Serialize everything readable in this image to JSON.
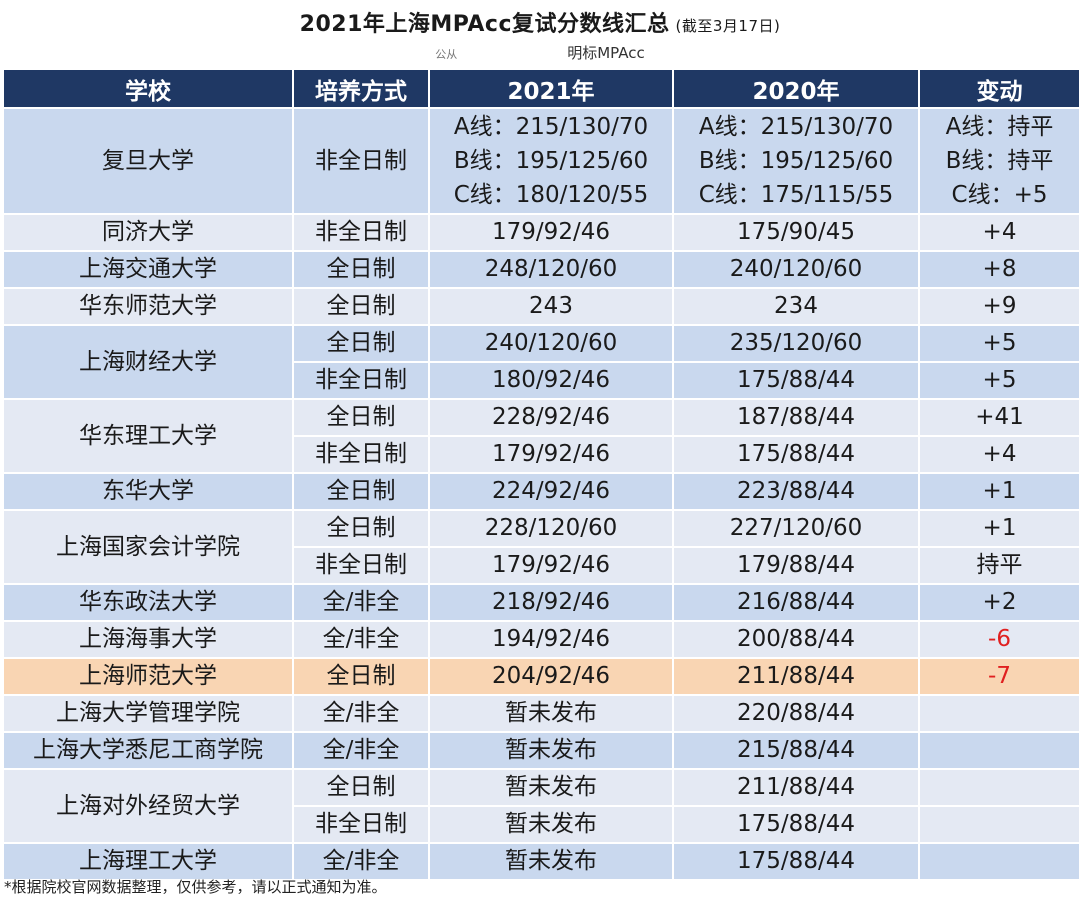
{
  "title": "2021年上海MPAcc复试分数线汇总",
  "title_note": "(截至3月17日)",
  "subtitle_left": "公从",
  "subtitle_right": "明标MPAcc",
  "headers": [
    "学校",
    "培养方式",
    "2021年",
    "2020年",
    "变动"
  ],
  "colors": {
    "header_bg": "#1f3864",
    "row_dark": "#c9d8ee",
    "row_light": "#e4e9f3",
    "highlight": "#f9d5b3",
    "negative": "#e02020"
  },
  "fudan": {
    "school": "复旦大学",
    "method": "非全日制",
    "y2021": [
      "A线：215/130/70",
      "B线：195/125/60",
      "C线：180/120/55"
    ],
    "y2020": [
      "A线：215/130/70",
      "B线：195/125/60",
      "C线：175/115/55"
    ],
    "change": [
      "A线：持平",
      "B线：持平",
      "C线：+5"
    ]
  },
  "rows": {
    "tongji": {
      "school": "同济大学",
      "method": "非全日制",
      "y2021": "179/92/46",
      "y2020": "175/90/45",
      "change": "+4"
    },
    "sjtu": {
      "school": "上海交通大学",
      "method": "全日制",
      "y2021": "248/120/60",
      "y2020": "240/120/60",
      "change": "+8"
    },
    "ecnu": {
      "school": "华东师范大学",
      "method": "全日制",
      "y2021": "243",
      "y2020": "234",
      "change": "+9"
    },
    "sufe_ft": {
      "school": "上海财经大学",
      "method": "全日制",
      "y2021": "240/120/60",
      "y2020": "235/120/60",
      "change": "+5"
    },
    "sufe_pt": {
      "method": "非全日制",
      "y2021": "180/92/46",
      "y2020": "175/88/44",
      "change": "+5"
    },
    "ecust_ft": {
      "school": "华东理工大学",
      "method": "全日制",
      "y2021": "228/92/46",
      "y2020": "187/88/44",
      "change": "+41"
    },
    "ecust_pt": {
      "method": "非全日制",
      "y2021": "179/92/46",
      "y2020": "175/88/44",
      "change": "+4"
    },
    "dhu": {
      "school": "东华大学",
      "method": "全日制",
      "y2021": "224/92/46",
      "y2020": "223/88/44",
      "change": "+1"
    },
    "snai_ft": {
      "school": "上海国家会计学院",
      "method": "全日制",
      "y2021": "228/120/60",
      "y2020": "227/120/60",
      "change": "+1"
    },
    "snai_pt": {
      "method": "非全日制",
      "y2021": "179/92/46",
      "y2020": "179/88/44",
      "change": "持平"
    },
    "ecupl": {
      "school": "华东政法大学",
      "method": "全/非全",
      "y2021": "218/92/46",
      "y2020": "216/88/44",
      "change": "+2"
    },
    "shmtu": {
      "school": "上海海事大学",
      "method": "全/非全",
      "y2021": "194/92/46",
      "y2020": "200/88/44",
      "change": "-6"
    },
    "shnu": {
      "school": "上海师范大学",
      "method": "全日制",
      "y2021": "204/92/46",
      "y2020": "211/88/44",
      "change": "-7"
    },
    "shu_mgmt": {
      "school": "上海大学管理学院",
      "method": "全/非全",
      "y2021": "暂未发布",
      "y2020": "220/88/44",
      "change": ""
    },
    "shu_sydney": {
      "school": "上海大学悉尼工商学院",
      "method": "全/非全",
      "y2021": "暂未发布",
      "y2020": "215/88/44",
      "change": ""
    },
    "suibe_ft": {
      "school": "上海对外经贸大学",
      "method": "全日制",
      "y2021": "暂未发布",
      "y2020": "211/88/44",
      "change": ""
    },
    "suibe_pt": {
      "method": "非全日制",
      "y2021": "暂未发布",
      "y2020": "175/88/44",
      "change": ""
    },
    "usst": {
      "school": "上海理工大学",
      "method": "全/非全",
      "y2021": "暂未发布",
      "y2020": "175/88/44",
      "change": ""
    }
  },
  "footnote": "*根据院校官网数据整理，仅供参考，请以正式通知为准。"
}
